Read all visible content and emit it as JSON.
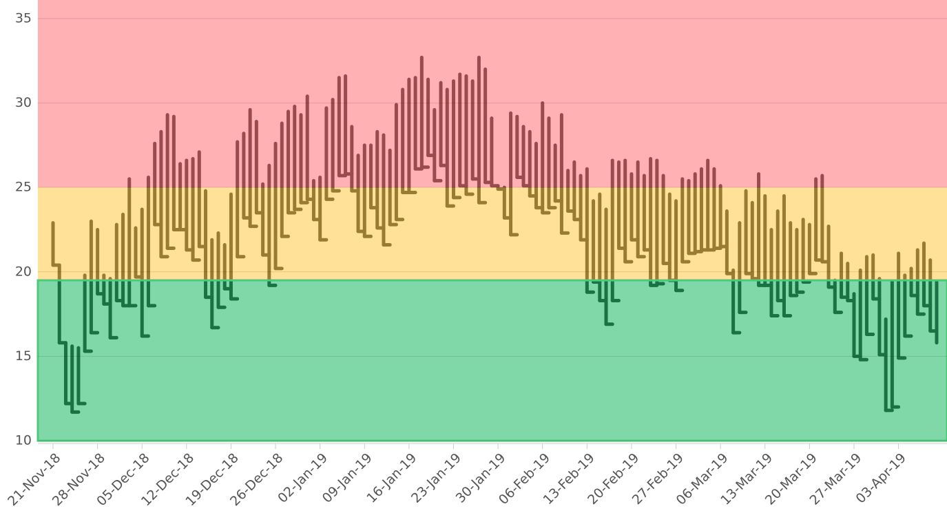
{
  "chart_data": {
    "type": "hilo",
    "x": [
      "21-Nov-18",
      "22-Nov-18",
      "23-Nov-18",
      "24-Nov-18",
      "25-Nov-18",
      "26-Nov-18",
      "27-Nov-18",
      "28-Nov-18",
      "29-Nov-18",
      "30-Nov-18",
      "01-Dec-18",
      "02-Dec-18",
      "03-Dec-18",
      "04-Dec-18",
      "05-Dec-18",
      "06-Dec-18",
      "07-Dec-18",
      "08-Dec-18",
      "09-Dec-18",
      "10-Dec-18",
      "11-Dec-18",
      "12-Dec-18",
      "13-Dec-18",
      "14-Dec-18",
      "15-Dec-18",
      "16-Dec-18",
      "17-Dec-18",
      "18-Dec-18",
      "19-Dec-18",
      "20-Dec-18",
      "21-Dec-18",
      "22-Dec-18",
      "23-Dec-18",
      "24-Dec-18",
      "25-Dec-18",
      "26-Dec-18",
      "27-Dec-18",
      "28-Dec-18",
      "29-Dec-18",
      "30-Dec-18",
      "31-Dec-18",
      "01-Jan-19",
      "02-Jan-19",
      "03-Jan-19",
      "04-Jan-19",
      "05-Jan-19",
      "06-Jan-19",
      "07-Jan-19",
      "08-Jan-19",
      "09-Jan-19",
      "10-Jan-19",
      "11-Jan-19",
      "12-Jan-19",
      "13-Jan-19",
      "14-Jan-19",
      "15-Jan-19",
      "16-Jan-19",
      "17-Jan-19",
      "18-Jan-19",
      "19-Jan-19",
      "20-Jan-19",
      "21-Jan-19",
      "22-Jan-19",
      "23-Jan-19",
      "24-Jan-19",
      "25-Jan-19",
      "26-Jan-19",
      "27-Jan-19",
      "28-Jan-19",
      "29-Jan-19",
      "30-Jan-19",
      "31-Jan-19",
      "01-Feb-19",
      "02-Feb-19",
      "03-Feb-19",
      "04-Feb-19",
      "05-Feb-19",
      "06-Feb-19",
      "07-Feb-19",
      "08-Feb-19",
      "09-Feb-19",
      "10-Feb-19",
      "11-Feb-19",
      "12-Feb-19",
      "13-Feb-19",
      "14-Feb-19",
      "15-Feb-19",
      "16-Feb-19",
      "17-Feb-19",
      "18-Feb-19",
      "19-Feb-19",
      "20-Feb-19",
      "21-Feb-19",
      "22-Feb-19",
      "23-Feb-19",
      "24-Feb-19",
      "25-Feb-19",
      "26-Feb-19",
      "27-Feb-19",
      "28-Feb-19",
      "01-Mar-19",
      "02-Mar-19",
      "03-Mar-19",
      "04-Mar-19",
      "05-Mar-19",
      "06-Mar-19",
      "07-Mar-19",
      "08-Mar-19",
      "09-Mar-19",
      "10-Mar-19",
      "11-Mar-19",
      "12-Mar-19",
      "13-Mar-19",
      "14-Mar-19",
      "15-Mar-19",
      "16-Mar-19",
      "17-Mar-19",
      "18-Mar-19",
      "19-Mar-19",
      "20-Mar-19",
      "21-Mar-19",
      "22-Mar-19",
      "23-Mar-19",
      "24-Mar-19",
      "25-Mar-19",
      "26-Mar-19",
      "27-Mar-19",
      "28-Mar-19",
      "29-Mar-19",
      "30-Mar-19",
      "31-Mar-19",
      "01-Apr-19",
      "02-Apr-19",
      "03-Apr-19",
      "04-Apr-19",
      "05-Apr-19",
      "06-Apr-19",
      "07-Apr-19",
      "08-Apr-19",
      "09-Apr-19"
    ],
    "high": [
      22.9,
      20.4,
      15.8,
      15.6,
      15.5,
      19.8,
      23,
      22.5,
      19.8,
      19.6,
      22.8,
      23.4,
      25.5,
      22.6,
      23.7,
      25.6,
      27.6,
      28.3,
      29.3,
      29.2,
      26.4,
      26.6,
      26.7,
      27.1,
      24.8,
      21.9,
      22.3,
      21.6,
      24.6,
      27.7,
      28.2,
      29.6,
      28.9,
      25.2,
      26.3,
      27.6,
      28.8,
      29.5,
      29.8,
      29.3,
      30.4,
      25.4,
      25.6,
      29.7,
      30.2,
      31.5,
      31.6,
      28.6,
      26.9,
      27.5,
      27.5,
      28.3,
      28.1,
      27.2,
      29.9,
      30.8,
      31.4,
      31.5,
      32.7,
      31.4,
      29.6,
      31.2,
      30.8,
      31.3,
      31.7,
      31.6,
      31.3,
      32.7,
      32,
      29.1,
      25,
      25,
      29.4,
      29.2,
      28.6,
      28.3,
      27.6,
      30,
      29.1,
      27.5,
      29.3,
      26,
      26.5,
      25.7,
      26.1,
      24.2,
      24.6,
      23.7,
      26.6,
      26.5,
      26.6,
      25.8,
      26.5,
      25.7,
      26.7,
      26.6,
      25.7,
      24.6,
      24.2,
      25.5,
      25.4,
      25.8,
      26.1,
      26.6,
      26.1,
      25.1,
      23.6,
      20.1,
      22.9,
      24.8,
      24.1,
      25.8,
      24.5,
      22.5,
      23.6,
      24.5,
      22.9,
      22.5,
      23.1,
      22.8,
      25.5,
      25.7,
      22.7,
      19.5,
      21.1,
      20.5,
      18.7,
      20.1,
      20.9,
      21,
      19.6,
      17.2,
      19.4,
      21.1,
      19.8,
      20.2,
      21.3,
      21.7,
      20.7,
      19.4
    ],
    "low": [
      20.4,
      15.8,
      12.2,
      11.7,
      12.2,
      15.3,
      16.4,
      18.7,
      18.1,
      16.1,
      18.3,
      18,
      18,
      19.7,
      16.2,
      18,
      22.8,
      20.9,
      21.4,
      22.5,
      22.5,
      21.3,
      20.7,
      21.5,
      18.5,
      16.7,
      17.9,
      19,
      18.4,
      20.9,
      23.2,
      22.7,
      23.5,
      21,
      19.2,
      20.2,
      22.1,
      23.5,
      23.7,
      24.1,
      24.3,
      23.1,
      21.9,
      24.3,
      24.8,
      25.7,
      25.8,
      24.8,
      22.4,
      22.1,
      23.8,
      22.6,
      21.6,
      22.8,
      23.1,
      24.7,
      24.7,
      26.1,
      26.2,
      26.9,
      25.4,
      26.3,
      23.9,
      24.4,
      25.1,
      24.6,
      25.5,
      24.1,
      25.3,
      25.1,
      24.9,
      23.2,
      22.2,
      25.6,
      25.1,
      24.5,
      23.8,
      23.5,
      23.8,
      24.2,
      22.3,
      23.6,
      23.1,
      21.9,
      18.8,
      19.4,
      18.3,
      16.9,
      18.3,
      21.4,
      20.6,
      21.9,
      20.9,
      21.3,
      19.2,
      19.3,
      20.5,
      19.5,
      18.9,
      20.6,
      21.1,
      21.2,
      21.3,
      21.3,
      21.4,
      21.5,
      19.9,
      16.4,
      17.6,
      19.9,
      19.6,
      19.2,
      19.2,
      17.4,
      18.3,
      17.4,
      18.6,
      18.8,
      19.4,
      19.9,
      20.7,
      20.6,
      19.1,
      17.6,
      18.5,
      18.3,
      15,
      14.8,
      16.3,
      18.4,
      15.1,
      11.8,
      12,
      14.9,
      16.2,
      18.6,
      17.5,
      18,
      16.5,
      15.8
    ],
    "color": "#000000",
    "xticks": [
      "21-Nov-18",
      "28-Nov-18",
      "05-Dec-18",
      "12-Dec-18",
      "19-Dec-18",
      "26-Dec-18",
      "02-Jan-19",
      "09-Jan-19",
      "16-Jan-19",
      "23-Jan-19",
      "30-Jan-19",
      "06-Feb-19",
      "13-Feb-19",
      "20-Feb-19",
      "27-Feb-19",
      "06-Mar-19",
      "13-Mar-19",
      "20-Mar-19",
      "27-Mar-19",
      "03-Apr-19"
    ],
    "ylim": [
      10,
      36.1
    ],
    "yticks": [
      10,
      15,
      20,
      25,
      30,
      35
    ],
    "grid": true,
    "bands": [
      {
        "from": 25,
        "to": 36.1,
        "color": "#ff7d80"
      },
      {
        "from": 19.5,
        "to": 25,
        "color": "#ffcf53"
      },
      {
        "from": 10,
        "to": 19.5,
        "color": "#2bbe6e",
        "border": "#4cc97a"
      }
    ]
  }
}
